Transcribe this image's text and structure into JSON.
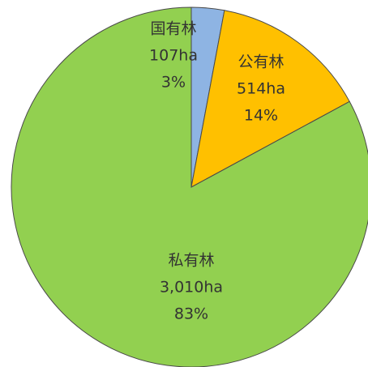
{
  "chart_data": {
    "type": "pie",
    "categories": [
      "国有林",
      "公有林",
      "私有林"
    ],
    "values": [
      107,
      514,
      3010
    ],
    "value_labels": [
      "107ha",
      "514ha",
      "3,010ha"
    ],
    "percent_labels": [
      "3%",
      "14%",
      "83%"
    ],
    "colors": [
      "#8eb4e3",
      "#ffc000",
      "#92d050"
    ]
  }
}
